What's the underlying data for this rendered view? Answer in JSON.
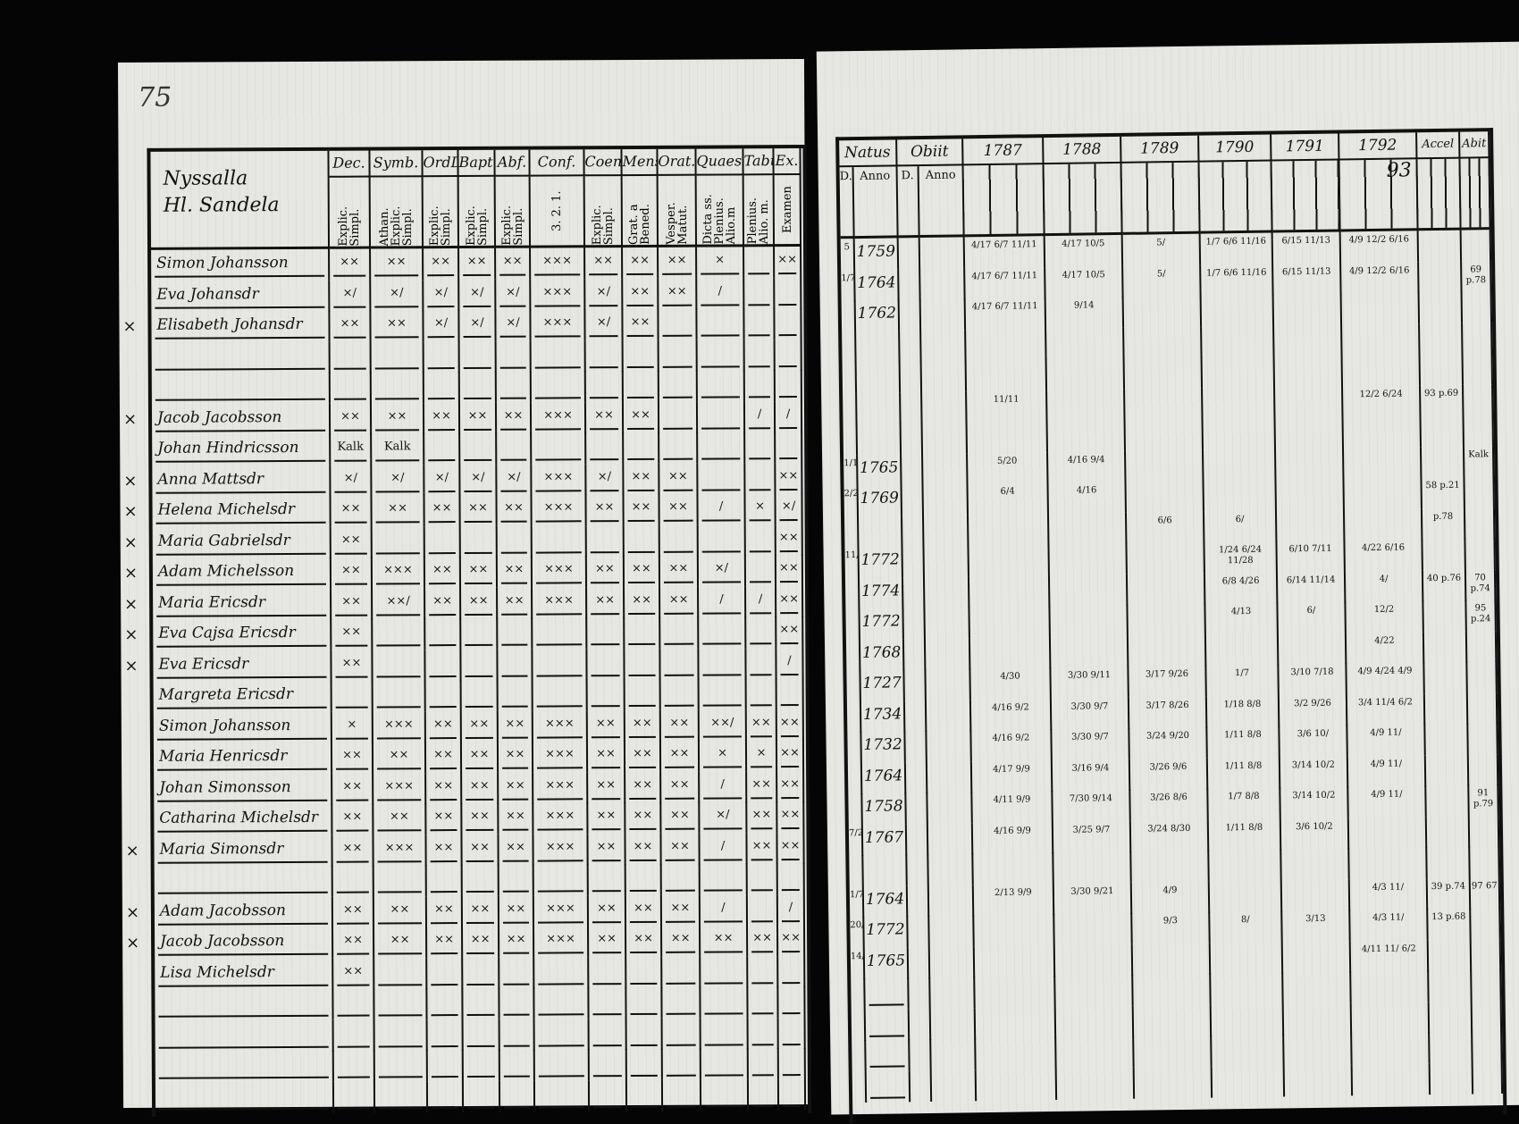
{
  "left_page": {
    "page_number": "75",
    "title_lines": [
      "Nyssalla",
      "Hl. Sandela"
    ],
    "columns": [
      {
        "top": "Dec.",
        "sub": "Explic. Simpl."
      },
      {
        "top": "Symb.",
        "sub": "Athan. Explic. Simpl."
      },
      {
        "top": "OrdD.",
        "sub": "Explic. Simpl."
      },
      {
        "top": "Bapt.",
        "sub": "Explic. Simpl."
      },
      {
        "top": "Abf.",
        "sub": "Explic. Simpl."
      },
      {
        "top": "Conf.",
        "sub": "3. 2. 1."
      },
      {
        "top": "CoenD.",
        "sub": "Explic. Simpl."
      },
      {
        "top": "Mensf.",
        "sub": "Grat. a Bened."
      },
      {
        "top": "Orat.",
        "sub": "Vesper. Matut."
      },
      {
        "top": "Quaest.",
        "sub": "Dicta ss. Plenius. Alio.m"
      },
      {
        "top": "Tabul.",
        "sub": "Plenius. Alio. m."
      },
      {
        "top": "Ex.",
        "sub": "Examen"
      }
    ],
    "rows": [
      {
        "mark": "",
        "name": "Simon Johansson",
        "marks": [
          "××",
          "××",
          "××",
          "××",
          "××",
          "×××",
          "××",
          "××",
          "××",
          "×",
          "",
          "××"
        ]
      },
      {
        "mark": "",
        "name": "Eva Johansdr",
        "marks": [
          "×/",
          "×/",
          "×/",
          "×/",
          "×/",
          "×××",
          "×/",
          "××",
          "××",
          "/",
          "",
          ""
        ]
      },
      {
        "mark": "×",
        "name": "Elisabeth Johansdr",
        "marks": [
          "××",
          "××",
          "×/",
          "×/",
          "×/",
          "×××",
          "×/",
          "××",
          "",
          "",
          "",
          ""
        ]
      },
      {
        "mark": "",
        "name": "",
        "marks": [
          "",
          "",
          "",
          "",
          "",
          "",
          "",
          "",
          "",
          "",
          "",
          ""
        ]
      },
      {
        "mark": "",
        "name": "",
        "marks": [
          "",
          "",
          "",
          "",
          "",
          "",
          "",
          "",
          "",
          "",
          "",
          ""
        ]
      },
      {
        "mark": "×",
        "name": "Jacob Jacobsson",
        "marks": [
          "××",
          "××",
          "××",
          "××",
          "××",
          "×××",
          "××",
          "××",
          "",
          "",
          "/",
          "/"
        ]
      },
      {
        "mark": "",
        "name": "Johan Hindricsson",
        "marks": [
          "Kalk",
          "Kalk",
          "",
          "",
          "",
          "",
          "",
          "",
          "",
          "",
          "",
          ""
        ]
      },
      {
        "mark": "×",
        "name": "Anna Mattsdr",
        "marks": [
          "×/",
          "×/",
          "×/",
          "×/",
          "×/",
          "×××",
          "×/",
          "××",
          "××",
          "",
          "",
          "××"
        ]
      },
      {
        "mark": "×",
        "name": "Helena Michelsdr",
        "marks": [
          "××",
          "××",
          "××",
          "××",
          "××",
          "×××",
          "××",
          "××",
          "××",
          "/",
          "×",
          "×/"
        ]
      },
      {
        "mark": "×",
        "name": "Maria Gabrielsdr",
        "marks": [
          "××",
          "",
          "",
          "",
          "",
          "",
          "",
          "",
          "",
          "",
          "",
          "××"
        ]
      },
      {
        "mark": "×",
        "name": "Adam Michelsson",
        "marks": [
          "××",
          "×××",
          "××",
          "××",
          "××",
          "×××",
          "××",
          "××",
          "××",
          "×/",
          "",
          "××"
        ]
      },
      {
        "mark": "×",
        "name": "Maria Ericsdr",
        "marks": [
          "××",
          "××/",
          "××",
          "××",
          "××",
          "×××",
          "××",
          "××",
          "××",
          "/",
          "/",
          "××"
        ]
      },
      {
        "mark": "×",
        "name": "Eva Cajsa Ericsdr",
        "marks": [
          "××",
          "",
          "",
          "",
          "",
          "",
          "",
          "",
          "",
          "",
          "",
          "××"
        ]
      },
      {
        "mark": "×",
        "name": "Eva Ericsdr",
        "marks": [
          "××",
          "",
          "",
          "",
          "",
          "",
          "",
          "",
          "",
          "",
          "",
          "/"
        ]
      },
      {
        "mark": "",
        "name": "Margreta Ericsdr",
        "marks": [
          "",
          "",
          "",
          "",
          "",
          "",
          "",
          "",
          "",
          "",
          "",
          ""
        ]
      },
      {
        "mark": "",
        "name": "Simon Johansson",
        "marks": [
          "×",
          "×××",
          "××",
          "××",
          "××",
          "×××",
          "××",
          "××",
          "××",
          "××/",
          "××",
          "××"
        ]
      },
      {
        "mark": "",
        "name": "Maria Henricsdr",
        "marks": [
          "××",
          "××",
          "××",
          "××",
          "××",
          "×××",
          "××",
          "××",
          "××",
          "×",
          "×",
          "××"
        ]
      },
      {
        "mark": "",
        "name": "Johan Simonsson",
        "marks": [
          "××",
          "×××",
          "××",
          "××",
          "××",
          "×××",
          "××",
          "××",
          "××",
          "/",
          "××",
          "××"
        ]
      },
      {
        "mark": "",
        "name": "Catharina Michelsdr",
        "marks": [
          "××",
          "××",
          "××",
          "××",
          "××",
          "×××",
          "××",
          "××",
          "××",
          "×/",
          "××",
          "××"
        ]
      },
      {
        "mark": "×",
        "name": "Maria Simonsdr",
        "marks": [
          "××",
          "×××",
          "××",
          "××",
          "××",
          "×××",
          "××",
          "××",
          "××",
          "/",
          "××",
          "××"
        ]
      },
      {
        "mark": "",
        "name": "",
        "marks": [
          "",
          "",
          "",
          "",
          "",
          "",
          "",
          "",
          "",
          "",
          "",
          ""
        ]
      },
      {
        "mark": "×",
        "name": "Adam Jacobsson",
        "marks": [
          "××",
          "××",
          "××",
          "××",
          "××",
          "×××",
          "××",
          "××",
          "××",
          "/",
          "",
          "/"
        ]
      },
      {
        "mark": "×",
        "name": "Jacob Jacobsson",
        "marks": [
          "××",
          "××",
          "××",
          "××",
          "××",
          "×××",
          "××",
          "××",
          "××",
          "××",
          "××",
          "××"
        ]
      },
      {
        "mark": "",
        "name": "Lisa Michelsdr",
        "marks": [
          "××",
          "",
          "",
          "",
          "",
          "",
          "",
          "",
          "",
          "",
          "",
          ""
        ]
      }
    ]
  },
  "right_page": {
    "columns": [
      "Natus",
      "Obiit",
      "1787",
      "1788",
      "1789",
      "1790",
      "1791",
      "1792",
      "Accel",
      "Abit"
    ],
    "subheaders": {
      "natus_d": "D.",
      "natus_anno": "Anno",
      "obiit_d": "D.",
      "obiit_anno": "Anno",
      "year_1792_note": "93"
    },
    "rows": [
      {
        "d": "5",
        "anno": "1759",
        "years": [
          "4/17 6/7 11/11",
          "4/17 10/5",
          "5/",
          "1/7 6/6 11/16",
          "6/15 11/13",
          "4/9 12/2 6/16"
        ],
        "accel": "",
        "abit": ""
      },
      {
        "d": "1/7",
        "anno": "1764",
        "years": [
          "4/17 6/7 11/11",
          "4/17 10/5",
          "5/",
          "1/7 6/6 11/16",
          "6/15 11/13",
          "4/9 12/2 6/16"
        ],
        "accel": "",
        "abit": "69 p.78"
      },
      {
        "d": "",
        "anno": "1762",
        "years": [
          "4/17 6/7 11/11",
          "9/14",
          "",
          "",
          "",
          ""
        ],
        "accel": "",
        "abit": ""
      },
      {
        "d": "",
        "anno": "",
        "years": [
          "",
          "",
          "",
          "",
          "",
          ""
        ],
        "accel": "",
        "abit": ""
      },
      {
        "d": "",
        "anno": "",
        "years": [
          "",
          "",
          "",
          "",
          "",
          ""
        ],
        "accel": "",
        "abit": ""
      },
      {
        "d": "",
        "anno": "",
        "years": [
          "11/11",
          "",
          "",
          "",
          "",
          "12/2 6/24"
        ],
        "accel": "93 p.69",
        "abit": ""
      },
      {
        "d": "",
        "anno": "",
        "years": [
          "",
          "",
          "",
          "",
          "",
          ""
        ],
        "accel": "",
        "abit": ""
      },
      {
        "d": "1/17",
        "anno": "1765",
        "years": [
          "5/20",
          "4/16 9/4",
          "",
          "",
          "",
          ""
        ],
        "accel": "",
        "abit": "Kalk"
      },
      {
        "d": "2/26",
        "anno": "1769",
        "years": [
          "6/4",
          "4/16",
          "",
          "",
          "",
          ""
        ],
        "accel": "58 p.21",
        "abit": ""
      },
      {
        "d": "",
        "anno": "",
        "years": [
          "",
          "",
          "6/6",
          "6/",
          "",
          ""
        ],
        "accel": "p.78",
        "abit": ""
      },
      {
        "d": "11/20",
        "anno": "1772",
        "years": [
          "",
          "",
          "",
          "1/24 6/24 11/28",
          "6/10 7/11",
          "4/22 6/16"
        ],
        "accel": "",
        "abit": ""
      },
      {
        "d": "",
        "anno": "1774",
        "years": [
          "",
          "",
          "",
          "6/8 4/26",
          "6/14 11/14",
          "4/"
        ],
        "accel": "40 p.76",
        "abit": "70 p.74"
      },
      {
        "d": "",
        "anno": "1772",
        "years": [
          "",
          "",
          "",
          "4/13",
          "6/",
          "12/2"
        ],
        "accel": "",
        "abit": "95 p.24"
      },
      {
        "d": "",
        "anno": "1768",
        "years": [
          "",
          "",
          "",
          "",
          "",
          "4/22"
        ],
        "accel": "",
        "abit": ""
      },
      {
        "d": "",
        "anno": "1727",
        "years": [
          "4/30",
          "3/30 9/11",
          "3/17 9/26",
          "1/7",
          "3/10 7/18",
          "4/9 4/24 4/9"
        ],
        "accel": "",
        "abit": ""
      },
      {
        "d": "",
        "anno": "1734",
        "years": [
          "4/16 9/2",
          "3/30 9/7",
          "3/17 8/26",
          "1/18 8/8",
          "3/2 9/26",
          "3/4 11/4 6/2"
        ],
        "accel": "",
        "abit": ""
      },
      {
        "d": "",
        "anno": "1732",
        "years": [
          "4/16 9/2",
          "3/30 9/7",
          "3/24 9/20",
          "1/11 8/8",
          "3/6 10/",
          "4/9 11/"
        ],
        "accel": "",
        "abit": ""
      },
      {
        "d": "",
        "anno": "1764",
        "years": [
          "4/17 9/9",
          "3/16 9/4",
          "3/26 9/6",
          "1/11 8/8",
          "3/14 10/2",
          "4/9 11/"
        ],
        "accel": "",
        "abit": ""
      },
      {
        "d": "",
        "anno": "1758",
        "years": [
          "4/11 9/9",
          "7/30 9/14",
          "3/26 8/6",
          "1/7 8/8",
          "3/14 10/2",
          "4/9 11/"
        ],
        "accel": "",
        "abit": "91 p.79"
      },
      {
        "d": "7/27",
        "anno": "1767",
        "years": [
          "4/16 9/9",
          "3/25 9/7",
          "3/24 8/30",
          "1/11 8/8",
          "3/6 10/2",
          ""
        ],
        "accel": "",
        "abit": ""
      },
      {
        "d": "",
        "anno": "",
        "years": [
          "",
          "",
          "",
          "",
          "",
          ""
        ],
        "accel": "",
        "abit": ""
      },
      {
        "d": "1/7",
        "anno": "1764",
        "years": [
          "2/13 9/9",
          "3/30 9/21",
          "4/9",
          "",
          "",
          "4/3 11/"
        ],
        "accel": "39 p.74",
        "abit": "97 67"
      },
      {
        "d": "20/7",
        "anno": "1772",
        "years": [
          "",
          "",
          "9/3",
          "8/",
          "3/13",
          "4/3 11/"
        ],
        "accel": "13 p.68",
        "abit": ""
      },
      {
        "d": "14/19",
        "anno": "1765",
        "years": [
          "",
          "",
          "",
          "",
          "",
          "4/11 11/ 6/2"
        ],
        "accel": "",
        "abit": ""
      }
    ]
  },
  "colors": {
    "background": "#050505",
    "paper": "#e6e6e2",
    "ink": "#111111"
  }
}
